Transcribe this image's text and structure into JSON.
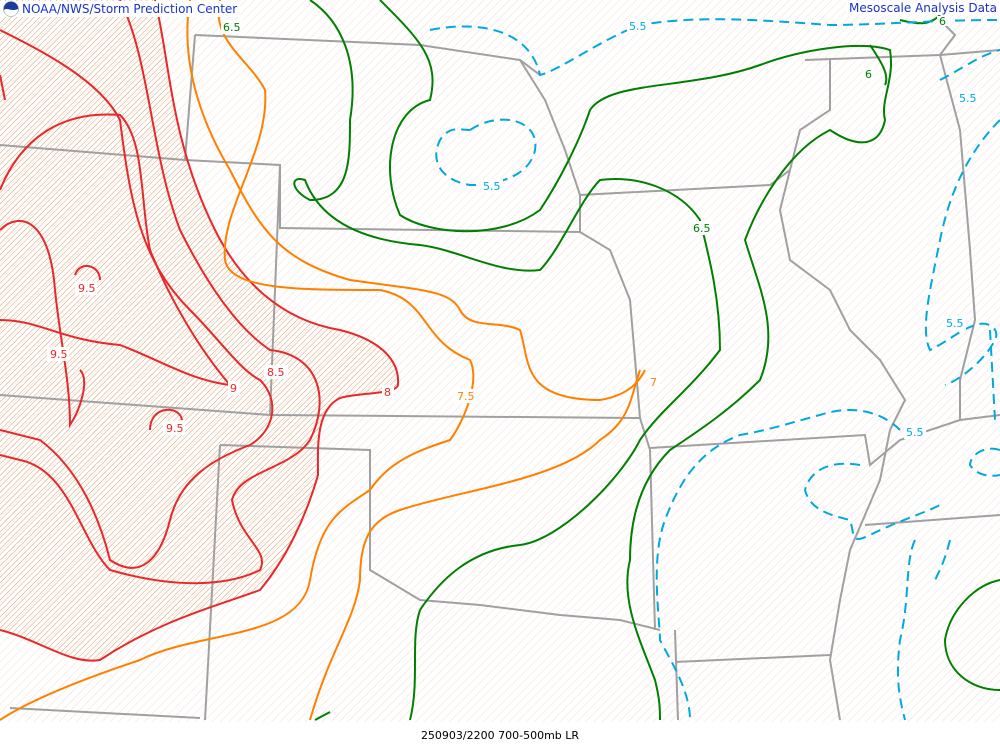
{
  "header": {
    "left_title": "NOAA/NWS/Storm Prediction Center",
    "right_title": "Mesoscale Analysis Data",
    "logo_icon": "noaa-logo-icon"
  },
  "footer": {
    "caption": "250903/2200 700-500mb LR"
  },
  "colors": {
    "header_text": "#1a32c8",
    "contour_high": "#e8282a",
    "contour_mid": "#ff8000",
    "contour_low": "#008000",
    "contour_dashed": "#00a8e0",
    "borders": "#a0a0a0",
    "hatch_high": "#e8a060",
    "hatch_light": "#f4d8d0"
  },
  "contour_labels": {
    "red": [
      "9.5",
      "9.5",
      "9.5",
      "9",
      "8.5",
      "8"
    ],
    "orange": [
      "7.5",
      "7"
    ],
    "green": [
      "6.5",
      "6.5",
      "6",
      "6"
    ],
    "cyan": [
      "5.5",
      "5.5",
      "5.5",
      "5.5",
      "5.5"
    ]
  }
}
